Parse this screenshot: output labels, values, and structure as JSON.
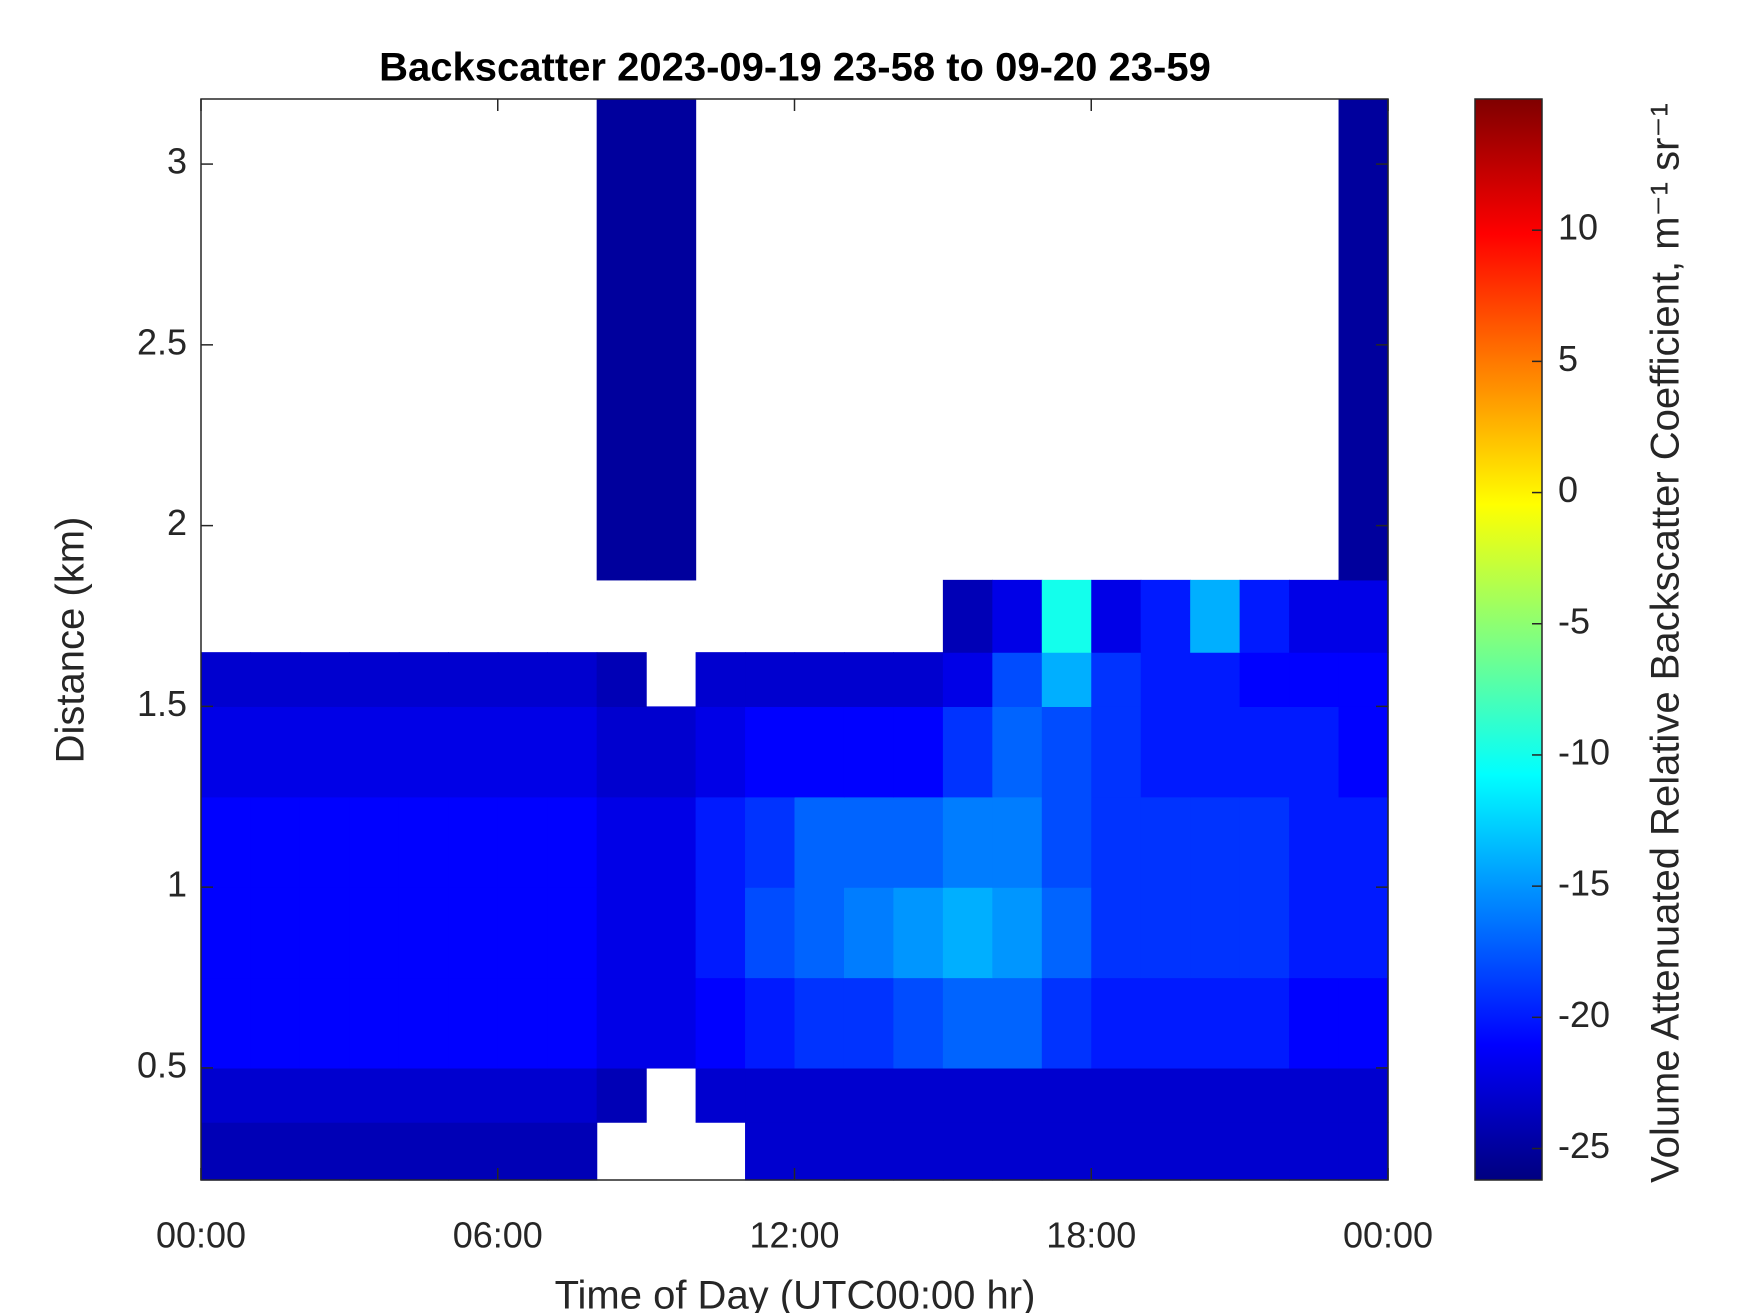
{
  "chart_data": {
    "type": "heatmap",
    "title": "Backscatter 2023-09-19 23-58 to 09-20 23-59",
    "xlabel": "Time of Day (UTC00:00 hr)",
    "ylabel": "Distance (km)",
    "colorbar_label": "Volume Attenuated Relative Backscatter Coefficient, m⁻¹ sr⁻¹",
    "colormap": "jet",
    "xlim": [
      0,
      24
    ],
    "ylim": [
      0.19,
      3.18
    ],
    "clim": [
      -26.2,
      15
    ],
    "xticks": [
      {
        "value": 0,
        "label": "00:00"
      },
      {
        "value": 6,
        "label": "06:00"
      },
      {
        "value": 12,
        "label": "12:00"
      },
      {
        "value": 18,
        "label": "18:00"
      },
      {
        "value": 24,
        "label": "00:00"
      }
    ],
    "yticks": [
      0.5,
      1,
      1.5,
      2,
      2.5,
      3
    ],
    "cticks": [
      -25,
      -20,
      -15,
      -10,
      -5,
      0,
      5,
      10
    ],
    "x_edges": [
      0,
      1,
      2,
      3,
      4,
      5,
      6,
      7,
      8,
      9,
      10,
      11,
      12,
      13,
      14,
      15,
      16,
      17,
      18,
      19,
      20,
      21,
      22,
      23,
      24
    ],
    "y_edges": [
      0.19,
      0.35,
      0.5,
      0.75,
      1.0,
      1.25,
      1.5,
      1.65,
      1.85,
      3.18
    ],
    "z": [
      [
        -24,
        -24,
        -24,
        -24,
        -24,
        -24,
        -24,
        -24,
        null,
        null,
        null,
        -23,
        -23,
        -23,
        -23,
        -23,
        -23,
        -23,
        -23,
        -23,
        -23,
        -23,
        -23,
        -23
      ],
      [
        -23,
        -23,
        -23,
        -23,
        -23,
        -23,
        -23,
        -23,
        -24,
        null,
        -23,
        -23,
        -23,
        -23,
        -23,
        -23,
        -23,
        -23,
        -23,
        -23,
        -23,
        -23,
        -23,
        -23
      ],
      [
        -21,
        -21,
        -21,
        -21,
        -21,
        -21,
        -21,
        -21,
        -22,
        -22,
        -21,
        -20,
        -19,
        -19,
        -18,
        -17,
        -17,
        -19,
        -20,
        -20,
        -20,
        -20,
        -21,
        -21
      ],
      [
        -21,
        -21,
        -21,
        -21,
        -21,
        -21,
        -21,
        -21,
        -22,
        -22,
        -20,
        -18,
        -17,
        -16,
        -15,
        -14,
        -15,
        -17,
        -19,
        -19,
        -19,
        -19,
        -20,
        -20
      ],
      [
        -21,
        -21,
        -21,
        -21,
        -21,
        -21,
        -21,
        -21,
        -22,
        -22,
        -20,
        -19,
        -17,
        -17,
        -17,
        -16,
        -16,
        -18,
        -19,
        -19,
        -19,
        -19,
        -20,
        -20
      ],
      [
        -22,
        -22,
        -22,
        -22,
        -22,
        -22,
        -22,
        -22,
        -23,
        -23,
        -22,
        -21,
        -21,
        -21,
        -21,
        -19,
        -17,
        -18,
        -19,
        -20,
        -20,
        -20,
        -20,
        -21
      ],
      [
        -23,
        -23,
        -23,
        -23,
        -23,
        -23,
        -23,
        -23,
        -24,
        null,
        -23,
        -23,
        -23,
        -23,
        -23,
        -22,
        -18,
        -14,
        -19,
        -20,
        -20,
        -21,
        -21,
        -21
      ],
      [
        null,
        null,
        null,
        null,
        null,
        null,
        null,
        null,
        null,
        null,
        null,
        null,
        null,
        null,
        null,
        -24,
        -22,
        -10,
        -22,
        -20,
        -14,
        -20,
        -22,
        -22
      ],
      [
        null,
        null,
        null,
        null,
        null,
        null,
        null,
        null,
        -25,
        -25,
        null,
        null,
        null,
        null,
        null,
        null,
        null,
        null,
        null,
        null,
        null,
        null,
        null,
        -25
      ]
    ]
  }
}
